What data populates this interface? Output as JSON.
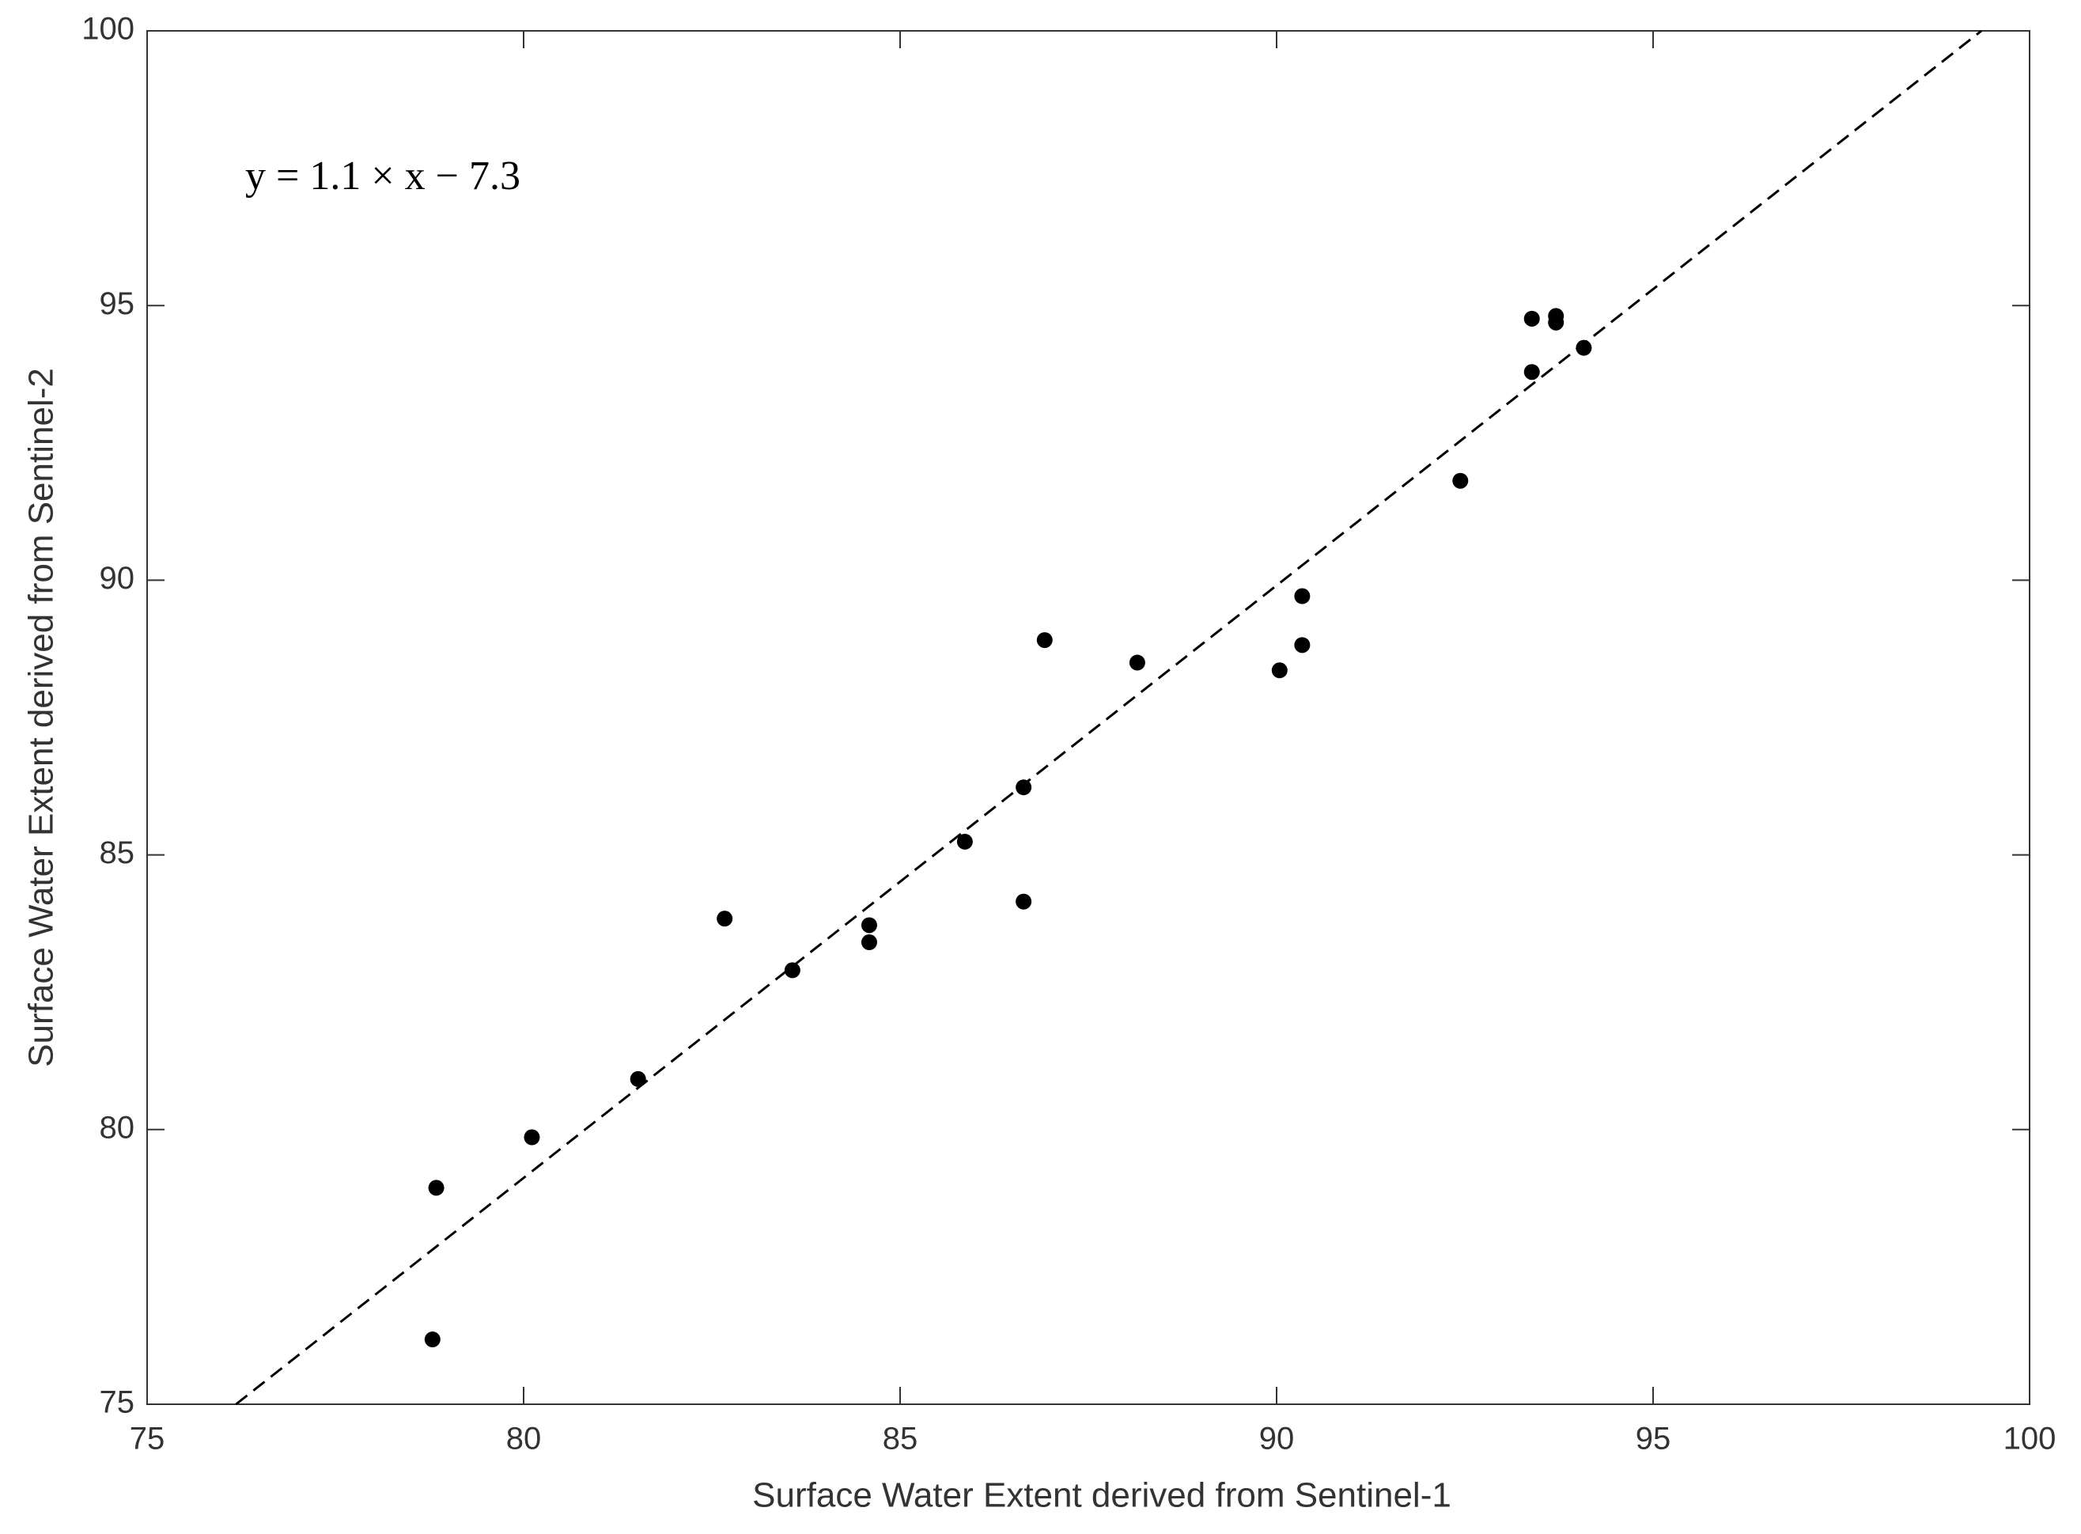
{
  "chart_data": {
    "type": "scatter",
    "x_label": "Surface Water Extent derived from Sentinel-1",
    "y_label": "Surface Water Extent derived from Sentinel-2",
    "annotation": "y = 1.1 × x − 7.3",
    "xlim": [
      75,
      100
    ],
    "xticks": [
      75,
      80,
      85,
      90,
      95,
      100
    ],
    "ylim": [
      75,
      100
    ],
    "yticks": [
      75,
      80,
      85,
      90,
      95,
      100
    ],
    "color": "#000000",
    "x": [
      78.84,
      78.79,
      80.11,
      81.52,
      82.67,
      83.57,
      84.59,
      84.59,
      85.86,
      86.64,
      86.64,
      86.92,
      88.15,
      90.04,
      90.34,
      90.34,
      92.44,
      93.39,
      93.39,
      93.71,
      93.71,
      94.08
    ],
    "values": [
      78.94,
      76.18,
      79.86,
      80.92,
      83.84,
      82.9,
      83.72,
      83.41,
      85.24,
      86.23,
      84.15,
      88.91,
      88.5,
      88.36,
      88.82,
      89.71,
      91.81,
      93.79,
      94.76,
      94.81,
      94.69,
      94.23
    ],
    "fit_line": {
      "x": [
        76.18,
        99.36
      ],
      "y": [
        75,
        100
      ]
    }
  }
}
